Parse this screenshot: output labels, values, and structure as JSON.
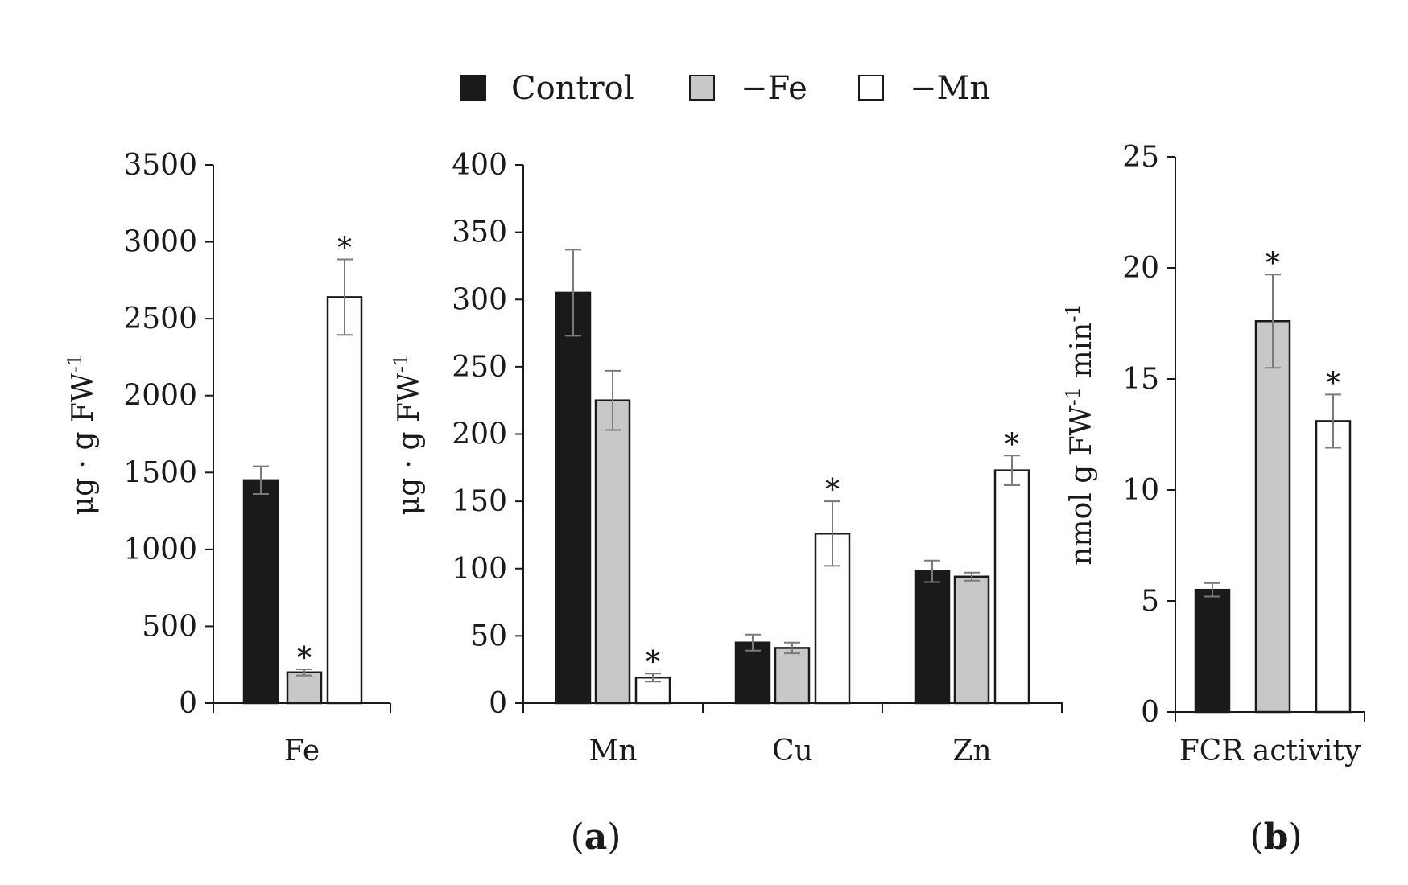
{
  "legend": [
    {
      "label": "Control",
      "color": "#1a1a1a"
    },
    {
      "label": "−Fe",
      "color": "#c8c8c8"
    },
    {
      "label": "−Mn",
      "color": "#ffffff"
    }
  ],
  "panel_labels": {
    "a": "a",
    "b": "b"
  },
  "chart_data": [
    {
      "type": "bar",
      "panel": "a",
      "ylabel": "μg · g FW",
      "ylabel_sup": "-1",
      "ylim": [
        0,
        3500
      ],
      "yticks": [
        0,
        500,
        1000,
        1500,
        2000,
        2500,
        3000,
        3500
      ],
      "categories": [
        "Fe"
      ],
      "series": [
        {
          "name": "Control",
          "values": [
            1450
          ],
          "errors": [
            90
          ],
          "sig": [
            false
          ]
        },
        {
          "name": "−Fe",
          "values": [
            200
          ],
          "errors": [
            20
          ],
          "sig": [
            true
          ]
        },
        {
          "name": "−Mn",
          "values": [
            2640
          ],
          "errors": [
            245
          ],
          "sig": [
            true
          ]
        }
      ],
      "significance_marker": "*"
    },
    {
      "type": "bar",
      "panel": "a",
      "ylabel": "μg · g FW",
      "ylabel_sup": "-1",
      "ylim": [
        0,
        400
      ],
      "yticks": [
        0,
        50,
        100,
        150,
        200,
        250,
        300,
        350,
        400
      ],
      "categories": [
        "Mn",
        "Cu",
        "Zn"
      ],
      "series": [
        {
          "name": "Control",
          "values": [
            305,
            45,
            98
          ],
          "errors": [
            32,
            6,
            8
          ],
          "sig": [
            false,
            false,
            false
          ]
        },
        {
          "name": "−Fe",
          "values": [
            225,
            41,
            94
          ],
          "errors": [
            22,
            4,
            3
          ],
          "sig": [
            false,
            false,
            false
          ]
        },
        {
          "name": "−Mn",
          "values": [
            19,
            126,
            173
          ],
          "errors": [
            3,
            24,
            11
          ],
          "sig": [
            true,
            true,
            true
          ]
        }
      ],
      "significance_marker": "*"
    },
    {
      "type": "bar",
      "panel": "b",
      "ylabel": "nmol g FW",
      "ylabel_sup": "-1",
      "ylabel_tail": " min",
      "ylabel_tail_sup": "-1",
      "ylim": [
        0,
        25
      ],
      "yticks": [
        0,
        5,
        10,
        15,
        20,
        25
      ],
      "categories": [
        "FCR activity"
      ],
      "series": [
        {
          "name": "Control",
          "values": [
            5.5
          ],
          "errors": [
            0.3
          ],
          "sig": [
            false
          ]
        },
        {
          "name": "−Fe",
          "values": [
            17.6
          ],
          "errors": [
            2.1
          ],
          "sig": [
            true
          ]
        },
        {
          "name": "−Mn",
          "values": [
            13.1
          ],
          "errors": [
            1.2
          ],
          "sig": [
            true
          ]
        }
      ],
      "significance_marker": "*"
    }
  ]
}
